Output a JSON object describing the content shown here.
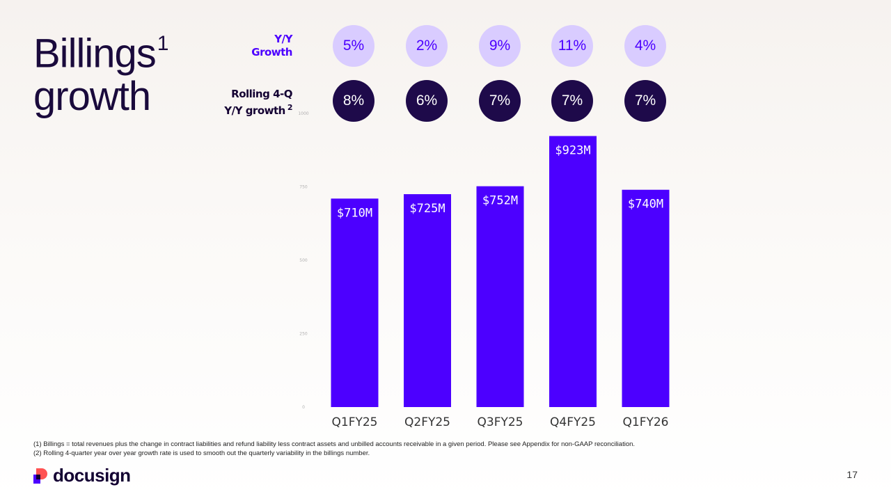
{
  "title": {
    "line1": "Billings",
    "sup": "1",
    "line2": "growth"
  },
  "row_labels": {
    "yy": {
      "line1": "Y/Y",
      "line2": "Growth"
    },
    "rolling": {
      "line1": "Rolling 4-Q",
      "line2": "Y/Y growth",
      "sup": "2"
    }
  },
  "yy_growth": [
    "5%",
    "2%",
    "9%",
    "11%",
    "4%"
  ],
  "rolling_growth": [
    "8%",
    "6%",
    "7%",
    "7%",
    "7%"
  ],
  "chart_data": {
    "type": "bar",
    "categories": [
      "Q1FY25",
      "Q2FY25",
      "Q3FY25",
      "Q4FY25",
      "Q1FY26"
    ],
    "values": [
      710,
      725,
      752,
      923,
      740
    ],
    "data_labels": [
      "$710M",
      "$725M",
      "$752M",
      "$923M",
      "$740M"
    ],
    "ylim": [
      0,
      1000
    ],
    "yticks": [
      0,
      250,
      500,
      750,
      1000
    ],
    "ytick_labels": [
      "0",
      "250",
      "500",
      "750",
      "1000"
    ],
    "grid": false,
    "bar_color": "#4c00ff"
  },
  "footnotes": [
    "(1) Billings = total revenues plus the change in contract liabilities and refund liability less contract assets and unbilled accounts receivable in a given period. Please see Appendix for non-GAAP reconciliation.",
    "(2) Rolling 4-quarter year over year growth rate is used to smooth out the quarterly variability in the billings number."
  ],
  "logo_text": "docusign",
  "page_number": "17",
  "colors": {
    "accent": "#4c00ff",
    "dark": "#130032",
    "light_purple": "#d9ccff"
  }
}
